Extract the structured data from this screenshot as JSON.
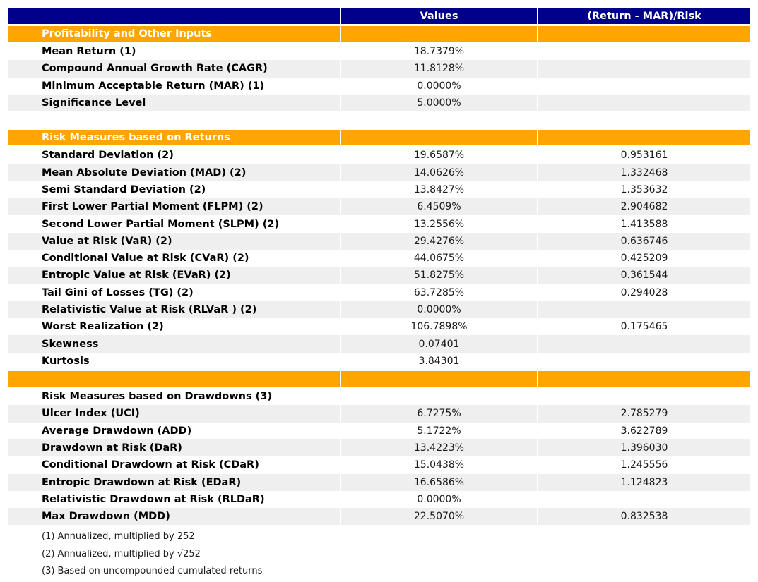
{
  "colors": {
    "header_bg": "#00008b",
    "header_text": "#ffffff",
    "section_bg": "#ffa500",
    "stripe_bg": "#efefef"
  },
  "chart_data": {
    "type": "table",
    "columns": [
      "",
      "Values",
      "(Return - MAR)/Risk"
    ],
    "rows": [
      {
        "kind": "section",
        "label": "Profitability and Other Inputs",
        "value": "",
        "ratio": ""
      },
      {
        "kind": "data",
        "shade": "white",
        "label": "Mean Return (1)",
        "value": "18.7379%",
        "ratio": ""
      },
      {
        "kind": "data",
        "shade": "gray",
        "label": "Compound Annual Growth Rate (CAGR)",
        "value": "11.8128%",
        "ratio": ""
      },
      {
        "kind": "data",
        "shade": "white",
        "label": "Minimum Acceptable Return (MAR) (1)",
        "value": "0.0000%",
        "ratio": ""
      },
      {
        "kind": "data",
        "shade": "gray",
        "label": "Significance Level",
        "value": "5.0000%",
        "ratio": ""
      },
      {
        "kind": "spacer",
        "label": "",
        "value": "",
        "ratio": ""
      },
      {
        "kind": "section",
        "label": "Risk Measures based on Returns",
        "value": "",
        "ratio": ""
      },
      {
        "kind": "data",
        "shade": "white",
        "label": "Standard Deviation (2)",
        "value": "19.6587%",
        "ratio": "0.953161"
      },
      {
        "kind": "data",
        "shade": "gray",
        "label": "Mean Absolute Deviation (MAD) (2)",
        "value": "14.0626%",
        "ratio": "1.332468"
      },
      {
        "kind": "data",
        "shade": "white",
        "label": "Semi Standard Deviation (2)",
        "value": "13.8427%",
        "ratio": "1.353632"
      },
      {
        "kind": "data",
        "shade": "gray",
        "label": "First Lower Partial Moment (FLPM) (2)",
        "value": "6.4509%",
        "ratio": "2.904682"
      },
      {
        "kind": "data",
        "shade": "white",
        "label": "Second Lower Partial Moment (SLPM) (2)",
        "value": "13.2556%",
        "ratio": "1.413588"
      },
      {
        "kind": "data",
        "shade": "gray",
        "label": "Value at Risk (VaR) (2)",
        "value": "29.4276%",
        "ratio": "0.636746"
      },
      {
        "kind": "data",
        "shade": "white",
        "label": "Conditional Value at Risk (CVaR) (2)",
        "value": "44.0675%",
        "ratio": "0.425209"
      },
      {
        "kind": "data",
        "shade": "gray",
        "label": "Entropic Value at Risk (EVaR) (2)",
        "value": "51.8275%",
        "ratio": "0.361544"
      },
      {
        "kind": "data",
        "shade": "white",
        "label": "Tail Gini of Losses (TG) (2)",
        "value": "63.7285%",
        "ratio": "0.294028"
      },
      {
        "kind": "data",
        "shade": "gray",
        "label": "Relativistic Value at Risk (RLVaR ) (2)",
        "value": "0.0000%",
        "ratio": ""
      },
      {
        "kind": "data",
        "shade": "white",
        "label": "Worst Realization (2)",
        "value": "106.7898%",
        "ratio": "0.175465"
      },
      {
        "kind": "data",
        "shade": "gray",
        "label": "Skewness",
        "value": "0.07401",
        "ratio": ""
      },
      {
        "kind": "data",
        "shade": "white",
        "label": "Kurtosis",
        "value": "3.84301",
        "ratio": ""
      },
      {
        "kind": "section-empty",
        "label": "",
        "value": "",
        "ratio": ""
      },
      {
        "kind": "title",
        "shade": "white",
        "label": "Risk Measures based on Drawdowns (3)",
        "value": "",
        "ratio": ""
      },
      {
        "kind": "data",
        "shade": "gray",
        "label": "Ulcer Index (UCI)",
        "value": "6.7275%",
        "ratio": "2.785279"
      },
      {
        "kind": "data",
        "shade": "white",
        "label": "Average Drawdown (ADD)",
        "value": "5.1722%",
        "ratio": "3.622789"
      },
      {
        "kind": "data",
        "shade": "gray",
        "label": "Drawdown at Risk (DaR)",
        "value": "13.4223%",
        "ratio": "1.396030"
      },
      {
        "kind": "data",
        "shade": "white",
        "label": "Conditional Drawdown at Risk (CDaR)",
        "value": "15.0438%",
        "ratio": "1.245556"
      },
      {
        "kind": "data",
        "shade": "gray",
        "label": "Entropic Drawdown at Risk (EDaR)",
        "value": "16.6586%",
        "ratio": "1.124823"
      },
      {
        "kind": "data",
        "shade": "white",
        "label": "Relativistic Drawdown at Risk (RLDaR)",
        "value": "0.0000%",
        "ratio": ""
      },
      {
        "kind": "data",
        "shade": "gray",
        "label": "Max Drawdown (MDD)",
        "value": "22.5070%",
        "ratio": "0.832538"
      }
    ],
    "footnotes": [
      "(1) Annualized, multiplied by 252",
      "(2) Annualized, multiplied by √252",
      "(3) Based on uncompounded cumulated returns"
    ]
  }
}
